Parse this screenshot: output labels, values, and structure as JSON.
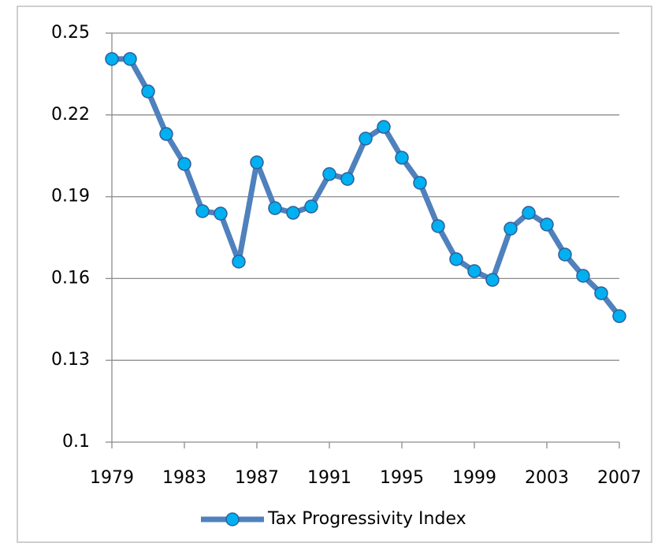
{
  "chart_data": {
    "type": "line",
    "x": [
      1979,
      1980,
      1981,
      1982,
      1983,
      1984,
      1985,
      1986,
      1987,
      1988,
      1989,
      1990,
      1991,
      1992,
      1993,
      1994,
      1995,
      1996,
      1997,
      1998,
      1999,
      2000,
      2001,
      2002,
      2003,
      2004,
      2005,
      2006,
      2007
    ],
    "series": [
      {
        "name": "Tax Progressivity Index",
        "color": "#4f81bd",
        "marker_color": "#00b0f0",
        "values": [
          0.2405,
          0.2405,
          0.2286,
          0.213,
          0.202,
          0.1847,
          0.1838,
          0.1662,
          0.2026,
          0.1858,
          0.1841,
          0.1864,
          0.1983,
          0.1965,
          0.2113,
          0.2156,
          0.2043,
          0.1951,
          0.1792,
          0.1671,
          0.1627,
          0.1595,
          0.1783,
          0.1841,
          0.1798,
          0.1688,
          0.161,
          0.1546,
          0.1462
        ]
      }
    ],
    "xlim": [
      1979,
      2007
    ],
    "xticks": [
      1979,
      1983,
      1987,
      1991,
      1995,
      1999,
      2003,
      2007
    ],
    "ylim": [
      0.1,
      0.25
    ],
    "yticks": [
      0.1,
      0.13,
      0.16,
      0.19,
      0.22,
      0.25
    ],
    "grid": true,
    "legend": "bottom"
  }
}
